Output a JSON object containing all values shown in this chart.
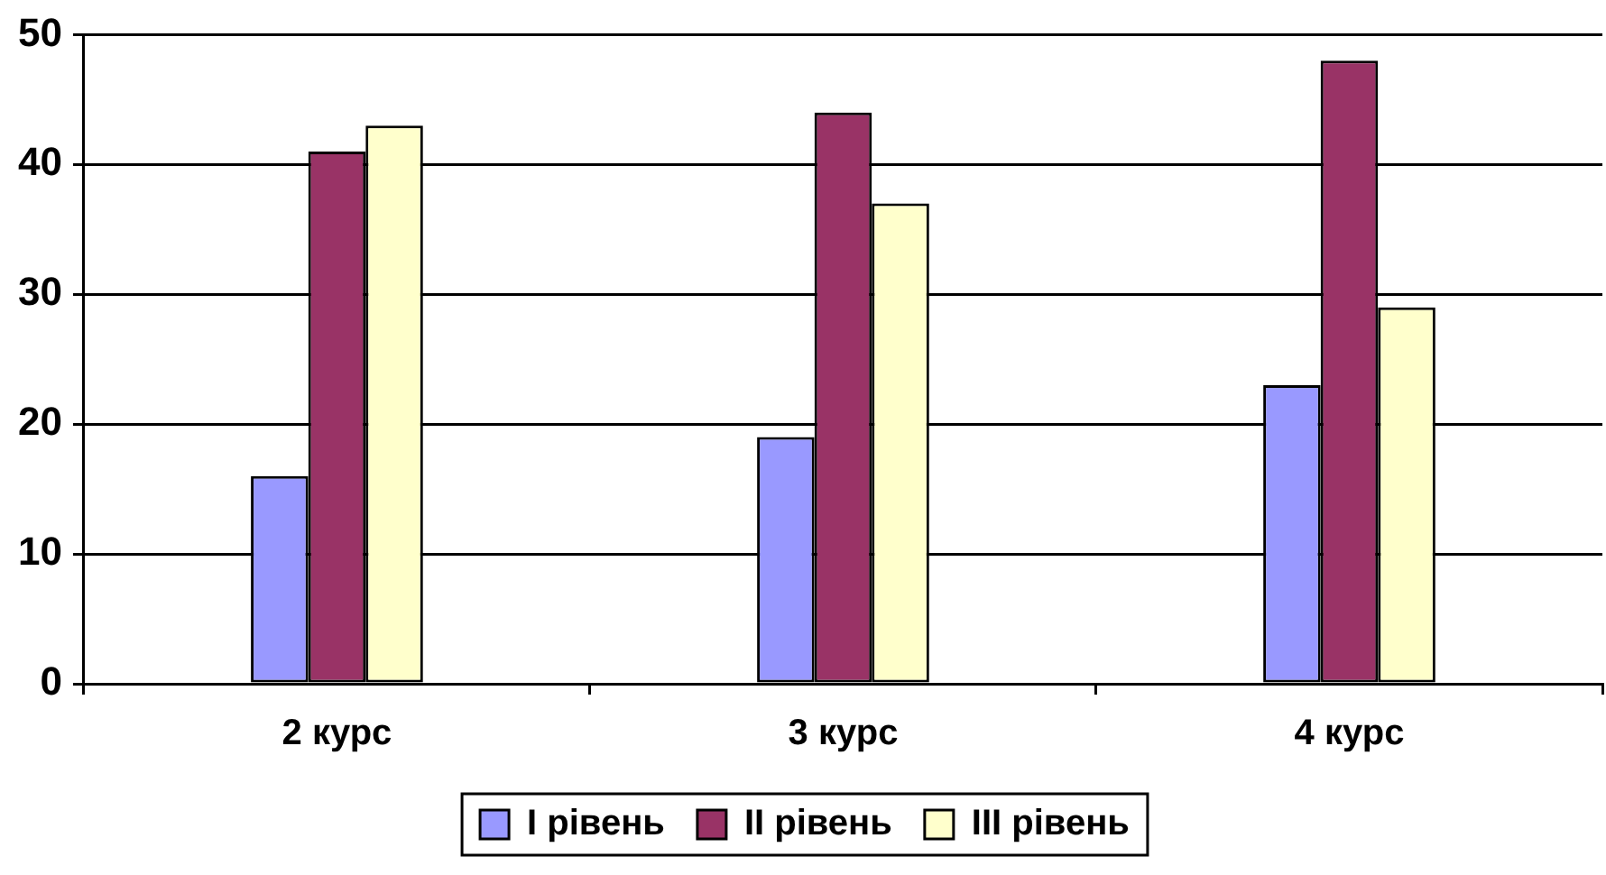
{
  "chart_data": {
    "type": "bar",
    "categories": [
      "2 курс",
      "3 курс",
      "4 курс"
    ],
    "series": [
      {
        "name": "I рівень",
        "color": "#9999ff",
        "values": [
          16,
          19,
          23
        ]
      },
      {
        "name": "II рівень",
        "color": "#993366",
        "values": [
          41,
          44,
          48
        ]
      },
      {
        "name": "III рівень",
        "color": "#ffffcc",
        "values": [
          43,
          37,
          29
        ]
      }
    ],
    "ylim": [
      0,
      50
    ],
    "yticks": [
      0,
      10,
      20,
      30,
      40,
      50
    ],
    "grid": "y",
    "legend": "bottom"
  }
}
